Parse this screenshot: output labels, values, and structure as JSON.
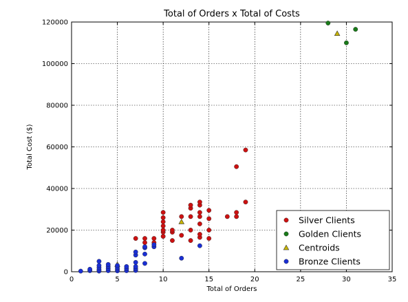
{
  "chart_data": {
    "type": "scatter",
    "title": "Total of Orders x Total of Costs",
    "xlabel": "Total of Orders",
    "ylabel": "Total Cost ($)",
    "xlim": [
      0,
      35
    ],
    "ylim": [
      0,
      120000
    ],
    "xticks": [
      0,
      5,
      10,
      15,
      20,
      25,
      30,
      35
    ],
    "yticks": [
      0,
      20000,
      40000,
      60000,
      80000,
      100000,
      120000
    ],
    "xtick_labels": [
      "0",
      "5",
      "10",
      "15",
      "20",
      "25",
      "30",
      "35"
    ],
    "ytick_labels": [
      "0",
      "20000",
      "40000",
      "60000",
      "80000",
      "100000",
      "120000"
    ],
    "grid": true,
    "grid_style": "dotted",
    "legend_position": "bottom-right",
    "series": [
      {
        "name": "Silver Clients",
        "marker": "circle",
        "color": "#cc1111",
        "points": [
          [
            7,
            16000
          ],
          [
            8,
            14000
          ],
          [
            8,
            16000
          ],
          [
            9,
            14000
          ],
          [
            9,
            16000
          ],
          [
            10,
            17000
          ],
          [
            10,
            19000
          ],
          [
            10,
            20000
          ],
          [
            10,
            22000
          ],
          [
            10,
            24000
          ],
          [
            10,
            26000
          ],
          [
            10,
            28500
          ],
          [
            11,
            15000
          ],
          [
            11,
            19000
          ],
          [
            11,
            20000
          ],
          [
            12,
            17500
          ],
          [
            12,
            26500
          ],
          [
            13,
            15000
          ],
          [
            13,
            20000
          ],
          [
            13,
            26500
          ],
          [
            13,
            30500
          ],
          [
            13,
            32000
          ],
          [
            14,
            16500
          ],
          [
            14,
            18000
          ],
          [
            14,
            23000
          ],
          [
            14,
            26500
          ],
          [
            14,
            28500
          ],
          [
            14,
            32000
          ],
          [
            14,
            33500
          ],
          [
            15,
            16000
          ],
          [
            15,
            20000
          ],
          [
            15,
            25500
          ],
          [
            15,
            29500
          ],
          [
            17,
            26500
          ],
          [
            18,
            26500
          ],
          [
            18,
            28500
          ],
          [
            18,
            50500
          ],
          [
            19,
            33500
          ],
          [
            19,
            58500
          ]
        ]
      },
      {
        "name": "Golden Clients",
        "marker": "circle",
        "color": "#1a7a1a",
        "points": [
          [
            28,
            119500
          ],
          [
            30,
            110000
          ],
          [
            31,
            116500
          ]
        ]
      },
      {
        "name": "Centroids",
        "marker": "triangle",
        "color": "#c8b400",
        "points": [
          [
            5,
            3500
          ],
          [
            12,
            24000
          ],
          [
            29,
            114500
          ]
        ]
      },
      {
        "name": "Bronze Clients",
        "marker": "circle",
        "color": "#1a2fd4",
        "points": [
          [
            1,
            300
          ],
          [
            2,
            500
          ],
          [
            2,
            1200
          ],
          [
            3,
            300
          ],
          [
            3,
            1000
          ],
          [
            3,
            2000
          ],
          [
            3,
            3000
          ],
          [
            3,
            5000
          ],
          [
            4,
            500
          ],
          [
            4,
            1500
          ],
          [
            4,
            2500
          ],
          [
            4,
            3500
          ],
          [
            5,
            400
          ],
          [
            5,
            1200
          ],
          [
            5,
            2000
          ],
          [
            5,
            3000
          ],
          [
            6,
            500
          ],
          [
            6,
            1500
          ],
          [
            6,
            2500
          ],
          [
            7,
            600
          ],
          [
            7,
            1500
          ],
          [
            7,
            2500
          ],
          [
            7,
            4500
          ],
          [
            7,
            8000
          ],
          [
            7,
            9500
          ],
          [
            8,
            4000
          ],
          [
            8,
            8500
          ],
          [
            8,
            11500
          ],
          [
            8,
            12000
          ],
          [
            9,
            12000
          ],
          [
            9,
            13000
          ],
          [
            12,
            6500
          ],
          [
            14,
            12500
          ]
        ]
      }
    ],
    "legend_order": [
      "Silver Clients",
      "Golden Clients",
      "Centroids",
      "Bronze Clients"
    ]
  }
}
